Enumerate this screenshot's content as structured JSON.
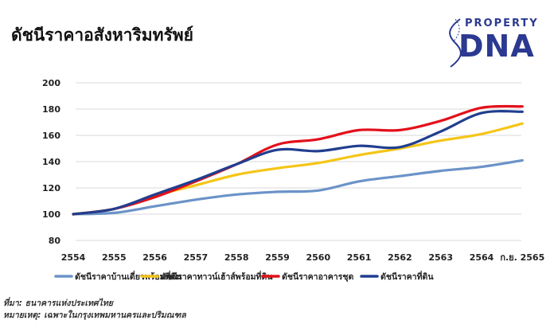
{
  "brand": {
    "top": "PROPERTY",
    "main": "DNA",
    "color": "#2b3990"
  },
  "notes": {
    "source": "ที่มา: ธนาคารแห่งประเทศไทย",
    "remark": "หมายเหตุ: เฉพาะในกรุงเทพมหานครและปริมณฑล"
  },
  "chart_data": {
    "type": "line",
    "title": "ดัชนีราคาอสังหาริมทรัพย์",
    "xlabel": "",
    "ylabel": "",
    "categories": [
      "2554",
      "2555",
      "2556",
      "2557",
      "2558",
      "2559",
      "2560",
      "2561",
      "2562",
      "2563",
      "2564",
      "ก.ย. 2565"
    ],
    "ylim": [
      80,
      200
    ],
    "yticks": [
      80,
      100,
      120,
      140,
      160,
      180,
      200
    ],
    "grid": true,
    "legend_position": "bottom",
    "series": [
      {
        "name": "ดัชนีราคาบ้านเดี่ยวพร้อมที่ดิน",
        "color": "#6b93c8",
        "values": [
          100,
          101,
          106,
          111,
          115,
          117,
          118,
          125,
          129,
          133,
          136,
          141
        ]
      },
      {
        "name": "ดัชนีราคาทาวน์เฮ้าส์พร้อมที่ดิน",
        "color": "#f5c518",
        "values": [
          100,
          104,
          114,
          122,
          130,
          135,
          139,
          145,
          150,
          156,
          161,
          169
        ]
      },
      {
        "name": "ดัชนีราคาอาคารชุด",
        "color": "#e3101a",
        "values": [
          100,
          104,
          113,
          125,
          138,
          153,
          157,
          164,
          164,
          171,
          181,
          182
        ]
      },
      {
        "name": "ดัชนีราคาที่ดิน",
        "color": "#213e8f",
        "values": [
          100,
          104,
          115,
          126,
          138,
          149,
          148,
          152,
          151,
          163,
          177,
          178
        ]
      }
    ]
  }
}
